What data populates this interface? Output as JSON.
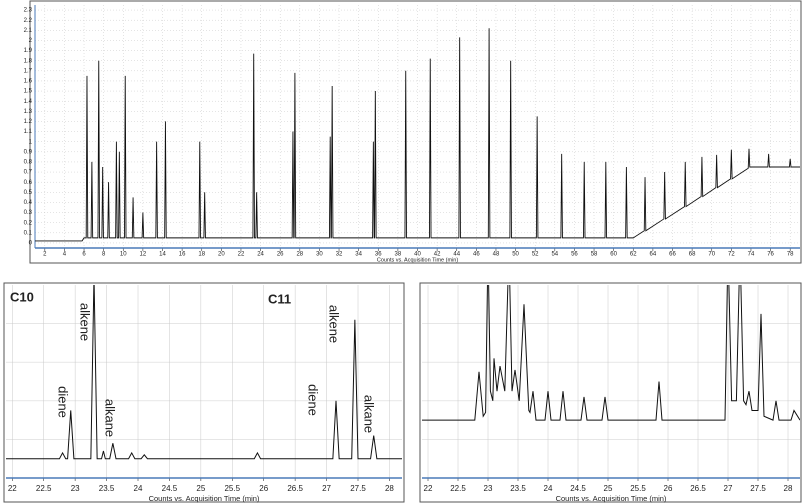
{
  "chart_data": [
    {
      "type": "line",
      "color": "#111111",
      "grid": true,
      "xlabel": "Counts vs. Acquisition Time (min)",
      "xlim": [
        1,
        79
      ],
      "ylim": [
        -0.05,
        2.35
      ],
      "xticks": [
        2,
        4,
        6,
        8,
        10,
        12,
        14,
        16,
        18,
        20,
        22,
        24,
        26,
        28,
        30,
        32,
        34,
        36,
        38,
        40,
        42,
        44,
        46,
        48,
        50,
        52,
        54,
        56,
        58,
        60,
        62,
        64,
        66,
        68,
        70,
        72,
        74,
        76,
        78
      ],
      "yticks": [
        0,
        0.1,
        0.2,
        0.3,
        0.4,
        0.5,
        0.6,
        0.7,
        0.8,
        0.9,
        1,
        1.1,
        1.2,
        1.3,
        1.4,
        1.5,
        1.6,
        1.7,
        1.8,
        1.9,
        2,
        2.1,
        2.2,
        2.3
      ],
      "x": [
        1,
        5.8,
        6.0,
        6.22,
        6.3,
        6.38,
        6.72,
        6.8,
        6.88,
        7.42,
        7.5,
        7.58,
        7.82,
        7.9,
        7.98,
        8.42,
        8.5,
        8.58,
        9.22,
        9.3,
        9.38,
        9.52,
        9.6,
        9.68,
        10.12,
        10.2,
        10.28,
        10.92,
        11,
        11.08,
        11.92,
        12,
        12.08,
        13.32,
        13.4,
        13.48,
        14.22,
        14.3,
        14.38,
        17.72,
        17.8,
        17.88,
        18.22,
        18.3,
        18.38,
        23.22,
        23.3,
        23.38,
        23.52,
        23.6,
        23.68,
        27.22,
        27.3,
        27.38,
        27.42,
        27.5,
        27.58,
        31.02,
        31.1,
        31.18,
        31.22,
        31.3,
        31.38,
        35.42,
        35.5,
        35.58,
        35.62,
        35.7,
        35.78,
        38.72,
        38.8,
        38.88,
        41.22,
        41.3,
        41.38,
        44.22,
        44.3,
        44.38,
        47.22,
        47.3,
        47.38,
        49.42,
        49.5,
        49.58,
        52.12,
        52.2,
        52.28,
        54.62,
        54.7,
        54.78,
        56.92,
        57,
        57.08,
        59.12,
        59.2,
        59.28,
        61.22,
        61.3,
        61.38,
        62,
        63.12,
        63.2,
        63.28,
        65.12,
        65.2,
        65.28,
        67.22,
        67.3,
        67.38,
        68.92,
        69,
        69.08,
        70.42,
        70.5,
        70.58,
        71.92,
        72,
        72.08,
        73.72,
        73.8,
        73.88,
        75.72,
        75.8,
        75.88,
        77.92,
        78,
        78.08,
        79
      ],
      "values": [
        0.02,
        0.02,
        0.05,
        0.05,
        1.65,
        0.05,
        0.05,
        0.8,
        0.05,
        0.05,
        1.8,
        0.05,
        0.05,
        0.75,
        0.05,
        0.05,
        0.6,
        0.05,
        0.05,
        1.0,
        0.05,
        0.05,
        0.9,
        0.05,
        0.05,
        1.65,
        0.05,
        0.05,
        0.45,
        0.05,
        0.05,
        0.3,
        0.05,
        0.05,
        1.0,
        0.05,
        0.05,
        1.2,
        0.05,
        0.05,
        1.0,
        0.05,
        0.05,
        0.5,
        0.05,
        0.05,
        1.87,
        0.05,
        0.05,
        0.5,
        0.05,
        0.05,
        1.1,
        0.05,
        0.05,
        1.68,
        0.05,
        0.05,
        1.05,
        0.05,
        0.05,
        1.55,
        0.05,
        0.05,
        1.0,
        0.05,
        0.05,
        1.5,
        0.05,
        0.05,
        1.7,
        0.05,
        0.05,
        1.82,
        0.05,
        0.05,
        2.03,
        0.05,
        0.05,
        2.12,
        0.05,
        0.05,
        1.8,
        0.05,
        0.05,
        1.25,
        0.05,
        0.05,
        0.88,
        0.05,
        0.05,
        0.8,
        0.05,
        0.05,
        0.8,
        0.05,
        0.05,
        0.75,
        0.05,
        0.05,
        0.12,
        0.65,
        0.12,
        0.237,
        0.7,
        0.237,
        0.359,
        0.8,
        0.359,
        0.458,
        0.85,
        0.458,
        0.546,
        0.87,
        0.546,
        0.633,
        0.92,
        0.633,
        0.738,
        0.93,
        0.75,
        0.75,
        0.88,
        0.75,
        0.75,
        0.83,
        0.75,
        0.75
      ]
    },
    {
      "type": "line",
      "color": "#111111",
      "grid": true,
      "xlabel": "Counts vs. Acquisition Time (min)",
      "xlim": [
        21.9,
        28.2
      ],
      "ylim": [
        0,
        1
      ],
      "xticks": [
        22,
        22.5,
        23,
        23.5,
        24,
        24.5,
        25,
        25.5,
        26,
        26.5,
        27,
        27.5,
        28
      ],
      "annotations": [
        "C10",
        "C11",
        "diene",
        "alkene",
        "alkane",
        "diene",
        "alkene",
        "alkane"
      ],
      "x": [
        21.9,
        22.75,
        22.8,
        22.85,
        22.88,
        22.93,
        22.98,
        23.25,
        23.3,
        23.35,
        23.42,
        23.45,
        23.48,
        23.55,
        23.6,
        23.65,
        23.85,
        23.9,
        23.95,
        24.05,
        24.1,
        24.15,
        25.85,
        25.9,
        25.95,
        27.1,
        27.15,
        27.2,
        27.4,
        27.45,
        27.5,
        27.7,
        27.75,
        27.8,
        28.2
      ],
      "values": [
        0.1,
        0.1,
        0.13,
        0.1,
        0.1,
        0.35,
        0.1,
        0.1,
        1.05,
        0.1,
        0.1,
        0.14,
        0.1,
        0.1,
        0.18,
        0.1,
        0.1,
        0.13,
        0.1,
        0.1,
        0.12,
        0.1,
        0.1,
        0.13,
        0.1,
        0.1,
        0.4,
        0.1,
        0.1,
        0.82,
        0.1,
        0.1,
        0.22,
        0.1,
        0.1
      ]
    },
    {
      "type": "line",
      "color": "#111111",
      "grid": true,
      "xlabel": "Counts vs. Acquisition Time (min)",
      "xlim": [
        21.9,
        28.2
      ],
      "ylim": [
        0,
        1
      ],
      "xticks": [
        22,
        22.5,
        23,
        23.5,
        24,
        24.5,
        25,
        25.5,
        26,
        26.5,
        27,
        27.5,
        28
      ],
      "x": [
        21.9,
        22.78,
        22.85,
        22.92,
        22.96,
        23.0,
        23.04,
        23.08,
        23.1,
        23.15,
        23.2,
        23.28,
        23.35,
        23.4,
        23.45,
        23.52,
        23.6,
        23.68,
        23.7,
        23.75,
        23.8,
        23.95,
        24.0,
        24.05,
        24.2,
        24.25,
        24.3,
        24.55,
        24.6,
        24.65,
        24.9,
        24.95,
        25.0,
        25.8,
        25.85,
        25.9,
        26.95,
        27.0,
        27.06,
        27.14,
        27.2,
        27.26,
        27.3,
        27.35,
        27.4,
        27.5,
        27.55,
        27.6,
        27.75,
        27.8,
        27.85,
        28.05,
        28.1,
        28.2
      ],
      "values": [
        0.3,
        0.3,
        0.55,
        0.32,
        0.34,
        1.2,
        0.45,
        0.4,
        0.62,
        0.45,
        0.58,
        0.45,
        1.2,
        0.45,
        0.56,
        0.4,
        0.9,
        0.35,
        0.34,
        0.45,
        0.3,
        0.3,
        0.45,
        0.3,
        0.3,
        0.45,
        0.3,
        0.3,
        0.42,
        0.3,
        0.3,
        0.42,
        0.3,
        0.3,
        0.5,
        0.3,
        0.3,
        1.2,
        0.4,
        0.4,
        1.2,
        0.4,
        0.38,
        0.45,
        0.35,
        0.35,
        0.85,
        0.32,
        0.3,
        0.4,
        0.3,
        0.3,
        0.35,
        0.3
      ]
    }
  ]
}
